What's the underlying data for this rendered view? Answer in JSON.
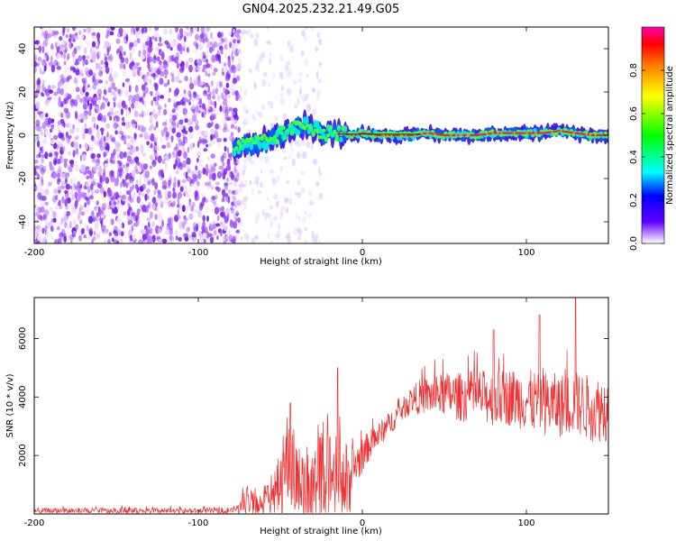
{
  "chart_data": [
    {
      "type": "heatmap",
      "title": "GN04.2025.232.21.49.G05",
      "xlabel": "Height of straight line (km)",
      "ylabel": "Frequency (Hz)",
      "xlim": [
        -200,
        150
      ],
      "ylim": [
        -50,
        50
      ],
      "x_ticks": [
        "-200",
        "-100",
        "0",
        "100"
      ],
      "x_tick_values": [
        -200,
        -100,
        0,
        100
      ],
      "y_ticks": [
        "-40",
        "-20",
        "0",
        "20",
        "40"
      ],
      "y_tick_values": [
        -40,
        -20,
        0,
        20,
        40
      ],
      "colorbar": {
        "label": "Normalized spectral amplitude",
        "ticks": [
          "0.0",
          "0.2",
          "0.4",
          "0.6",
          "0.8"
        ],
        "tick_values": [
          0.0,
          0.2,
          0.4,
          0.6,
          0.8
        ],
        "range": [
          0,
          1
        ],
        "colormap": [
          "#ff00ff",
          "#ff0000",
          "#ff8000",
          "#ffff00",
          "#00ff00",
          "#00ffff",
          "#0000ff",
          "#6000ff",
          "#ffffff"
        ]
      },
      "ridge": {
        "x": [
          -78,
          -70,
          -60,
          -50,
          -40,
          -33,
          -25,
          -15,
          -5,
          0,
          10,
          20,
          30,
          40,
          50,
          60,
          70,
          80,
          90,
          100,
          110,
          120,
          130,
          140,
          150
        ],
        "y": [
          -6,
          -4,
          -3,
          0,
          4,
          5,
          1,
          1,
          0,
          1,
          0,
          0,
          0,
          1,
          0,
          0,
          0,
          1,
          1,
          1,
          1,
          2,
          1,
          0,
          0
        ]
      },
      "noise_region": {
        "x_range": [
          -200,
          -75
        ],
        "amplitude": 0.1
      },
      "grid": false
    },
    {
      "type": "line",
      "xlabel": "Height of straight line (km)",
      "ylabel": "SNR (10 * v/v)",
      "xlim": [
        -200,
        150
      ],
      "ylim": [
        0,
        7400
      ],
      "x_ticks": [
        "-200",
        "-100",
        "0",
        "100"
      ],
      "x_tick_values": [
        -200,
        -100,
        0,
        100
      ],
      "y_ticks": [
        "2000",
        "4000",
        "6000"
      ],
      "y_tick_values": [
        2000,
        4000,
        6000
      ],
      "color": "#f03030",
      "series": [
        {
          "x": [
            -200,
            -180,
            -160,
            -140,
            -120,
            -100,
            -90,
            -80,
            -75,
            -70,
            -65,
            -60,
            -55,
            -50,
            -45,
            -40,
            -35,
            -30,
            -25,
            -20,
            -15,
            -10,
            -8,
            -5,
            0,
            5,
            10,
            15,
            20,
            25,
            30,
            35,
            40,
            45,
            50,
            60,
            70,
            80,
            90,
            100,
            110,
            120,
            130,
            140,
            150
          ],
          "values": [
            100,
            110,
            100,
            105,
            100,
            100,
            110,
            120,
            200,
            500,
            300,
            350,
            600,
            1000,
            2000,
            1100,
            900,
            700,
            1200,
            1400,
            1300,
            1100,
            1000,
            1600,
            2000,
            2400,
            2700,
            3000,
            3300,
            3600,
            3900,
            4000,
            4050,
            4050,
            4100,
            4000,
            4050,
            3950,
            4000,
            3900,
            3800,
            3700,
            3800,
            3600,
            3600
          ],
          "spread": [
            100,
            110,
            100,
            105,
            100,
            100,
            110,
            120,
            200,
            500,
            350,
            400,
            600,
            1200,
            1800,
            1400,
            1200,
            1400,
            1600,
            1500,
            1400,
            1400,
            1300,
            800,
            600,
            500,
            450,
            400,
            400,
            400,
            450,
            600,
            650,
            700,
            750,
            850,
            900,
            950,
            1000,
            1050,
            1100,
            1100,
            1100,
            1150,
            1150
          ]
        }
      ],
      "peaks": [
        {
          "x": -44,
          "value": 3800
        },
        {
          "x": -15,
          "value": 5000
        },
        {
          "x": 130,
          "value": 7400
        },
        {
          "x": 108,
          "value": 6800
        },
        {
          "x": 80,
          "value": 6300
        }
      ],
      "grid": false
    }
  ]
}
